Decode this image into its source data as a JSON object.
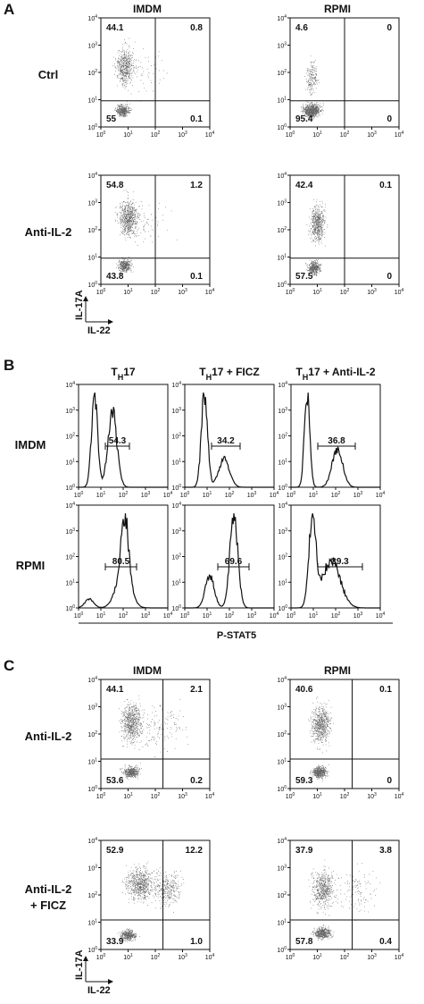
{
  "panel_letters": [
    "A",
    "B",
    "C"
  ],
  "axis_ticks": [
    {
      "base": "10",
      "exp": "0"
    },
    {
      "base": "10",
      "exp": "1"
    },
    {
      "base": "10",
      "exp": "2"
    },
    {
      "base": "10",
      "exp": "3"
    },
    {
      "base": "10",
      "exp": "4"
    }
  ],
  "panel_a": {
    "columns": [
      "IMDM",
      "RPMI"
    ],
    "rows": [
      {
        "label": [
          "Ctrl"
        ],
        "plots": [
          {
            "ul": "44.1",
            "ur": "0.8",
            "ll": "55",
            "lr": "0.1"
          },
          {
            "ul": "4.6",
            "ur": "0",
            "ll": "95.4",
            "lr": "0"
          }
        ]
      },
      {
        "label": [
          "Anti-IL-2"
        ],
        "plots": [
          {
            "ul": "54.8",
            "ur": "1.2",
            "ll": "43.8",
            "lr": "0.1"
          },
          {
            "ul": "42.4",
            "ur": "0.1",
            "ll": "57.5",
            "lr": "0"
          }
        ]
      }
    ],
    "y_label": "IL-17A",
    "x_label": "IL-22"
  },
  "panel_b": {
    "columns": [
      {
        "main": "T",
        "sub": "H",
        "rest": "17"
      },
      {
        "main": "T",
        "sub": "H",
        "rest": "17 + FICZ"
      },
      {
        "main": "T",
        "sub": "H",
        "rest": "17 + Anti-IL-2"
      }
    ],
    "rows": [
      {
        "label": "IMDM",
        "gates": [
          "54.3",
          "34.2",
          "36.8"
        ]
      },
      {
        "label": "RPMI",
        "gates": [
          "80.5",
          "69.6",
          "39.3"
        ]
      }
    ],
    "x_label": "P-STAT5"
  },
  "panel_c": {
    "columns": [
      "IMDM",
      "RPMI"
    ],
    "rows": [
      {
        "label": [
          "Anti-IL-2"
        ],
        "plots": [
          {
            "ul": "44.1",
            "ur": "2.1",
            "ll": "53.6",
            "lr": "0.2"
          },
          {
            "ul": "40.6",
            "ur": "0.1",
            "ll": "59.3",
            "lr": "0"
          }
        ]
      },
      {
        "label": [
          "Anti-IL-2",
          "+ FICZ"
        ],
        "plots": [
          {
            "ul": "52.9",
            "ur": "12.2",
            "ll": "33.9",
            "lr": "1.0"
          },
          {
            "ul": "37.9",
            "ur": "3.8",
            "ll": "57.8",
            "lr": "0.4"
          }
        ]
      }
    ],
    "y_label": "IL-17A",
    "x_label": "IL-22"
  }
}
